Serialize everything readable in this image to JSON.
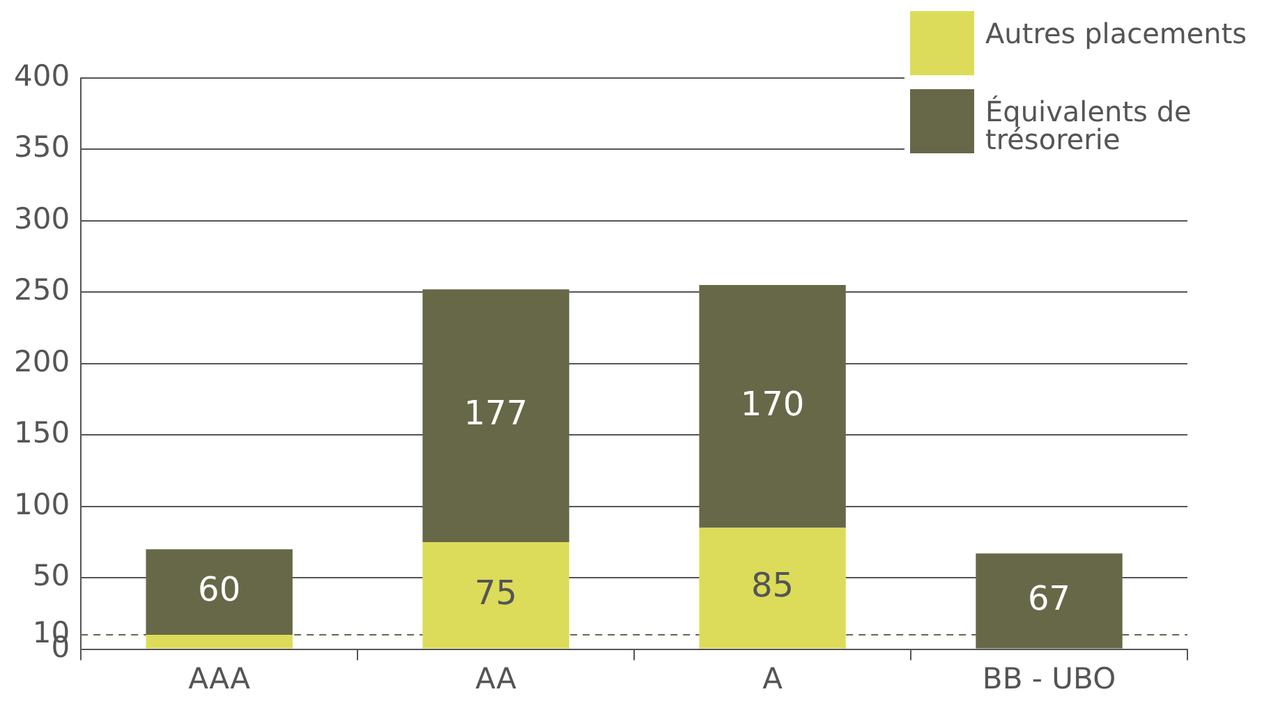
{
  "chart_data": {
    "type": "bar",
    "stacked": true,
    "categories": [
      "AAA",
      "AA",
      "A",
      "BB - UBO"
    ],
    "series": [
      {
        "name": "Autres placements",
        "color": "#dcdc5a",
        "values": [
          10,
          75,
          85,
          null
        ],
        "value_labels": [
          null,
          "75",
          "85",
          null
        ]
      },
      {
        "name": "Équivalents de trésorerie",
        "color": "#676848",
        "values": [
          60,
          177,
          170,
          67
        ],
        "value_labels": [
          "60",
          "177",
          "170",
          "67"
        ]
      }
    ],
    "ylim": [
      0,
      400
    ],
    "yticks": [
      0,
      10,
      50,
      100,
      150,
      200,
      250,
      300,
      350,
      400
    ],
    "grid": "y",
    "legend": "top right",
    "ref_lines": [
      {
        "axis": "y",
        "value": 10,
        "color": "#676848",
        "line_style": "dashed"
      }
    ]
  }
}
